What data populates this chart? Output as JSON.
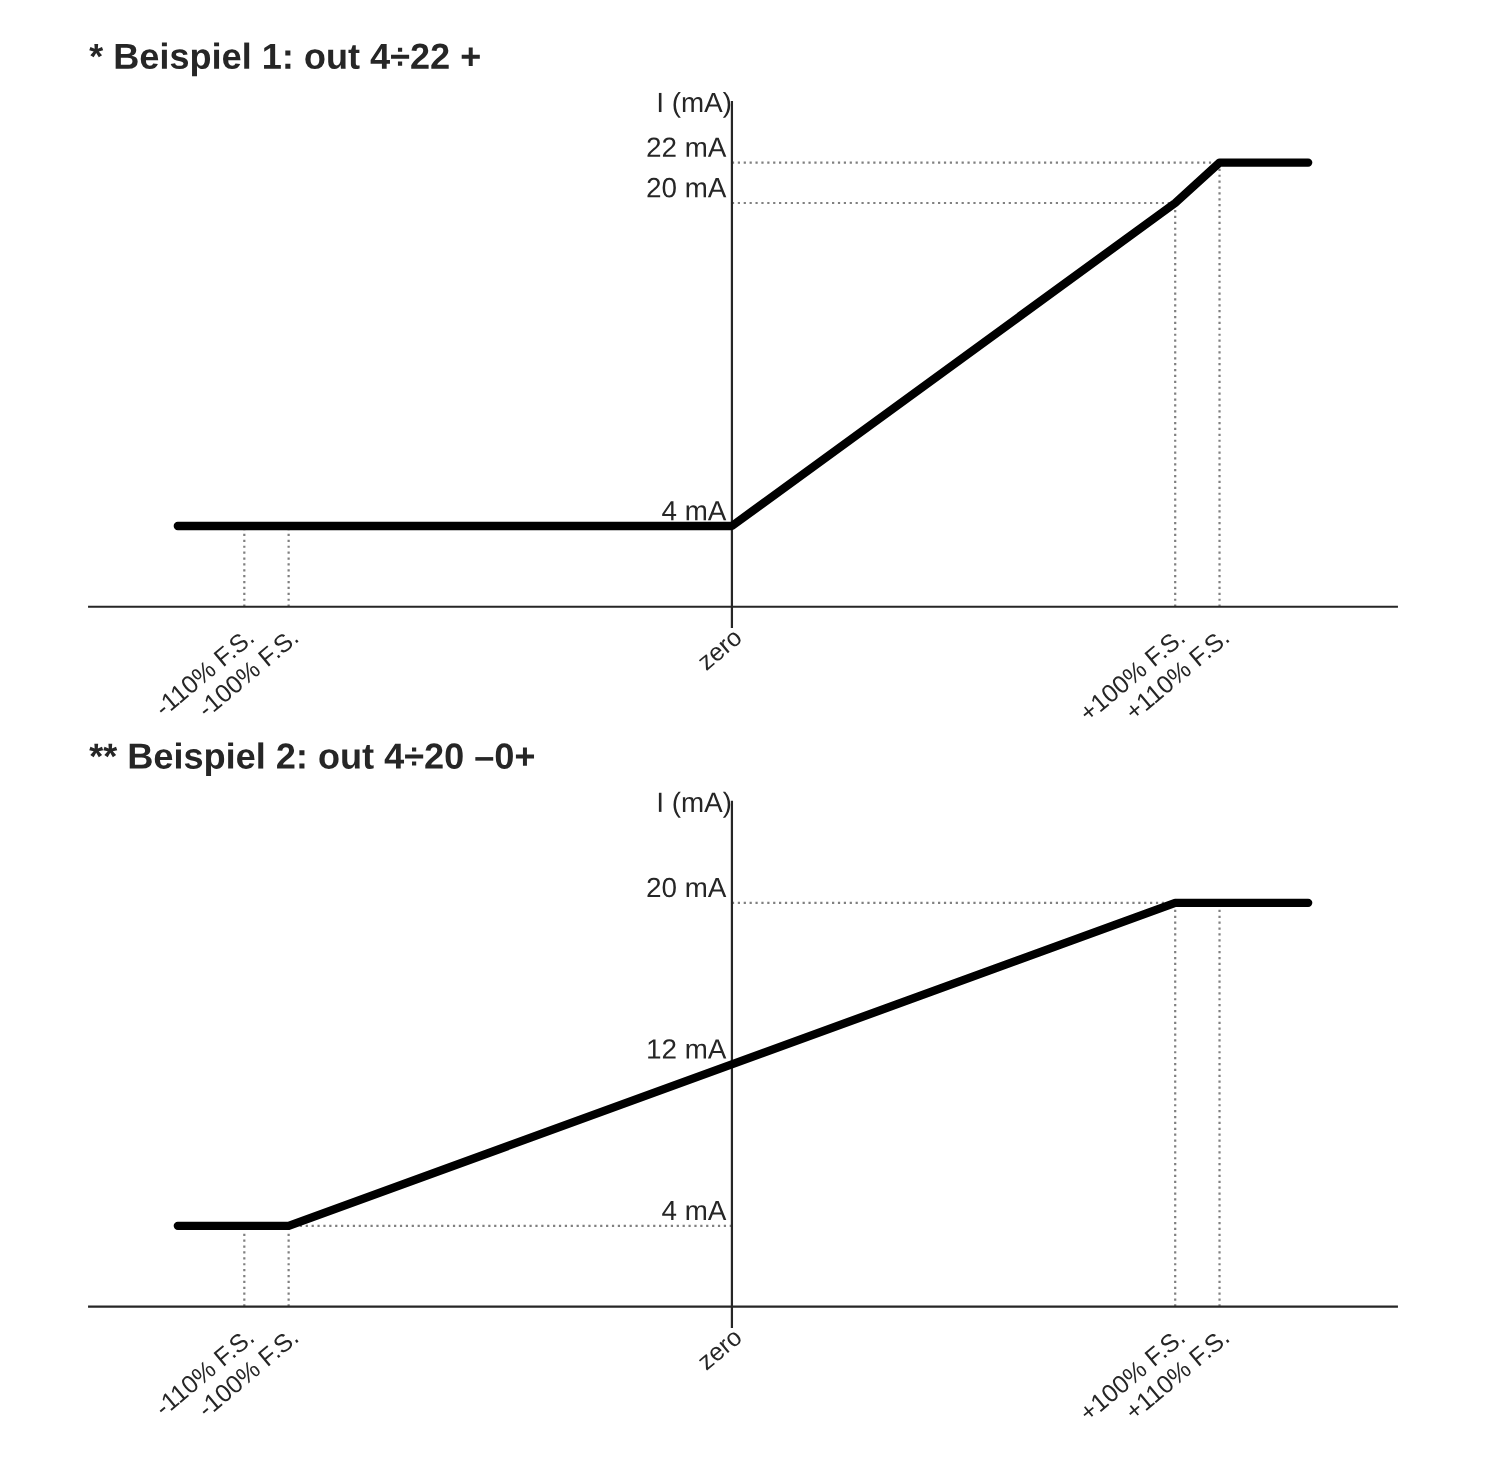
{
  "chart_data": [
    {
      "type": "line",
      "title": "* Beispiel 1: out 4÷22 +",
      "ylabel": "I (mA)",
      "x": [
        -125,
        0,
        100,
        110,
        130
      ],
      "series": [
        {
          "color": "#000000",
          "values": [
            4,
            4,
            20,
            22,
            22
          ]
        }
      ],
      "xlim": [
        -145,
        150
      ],
      "ylim": [
        -1,
        25
      ],
      "xticks": [
        {
          "value": -110,
          "label": "-110% F.S."
        },
        {
          "value": -100,
          "label": "-100% F.S."
        },
        {
          "value": 0,
          "label": "zero"
        },
        {
          "value": 100,
          "label": "+100% F.S."
        },
        {
          "value": 110,
          "label": "+110% F.S."
        }
      ],
      "yticks": [
        {
          "value": 4,
          "label": "4 mA"
        },
        {
          "value": 20,
          "label": "20 mA"
        },
        {
          "value": 22,
          "label": "22 mA"
        }
      ],
      "ref_lines": [
        {
          "axis": "x",
          "value": -110,
          "color": "#808080",
          "line_style": "dotted"
        },
        {
          "axis": "x",
          "value": -100,
          "color": "#808080",
          "line_style": "dotted"
        },
        {
          "axis": "x",
          "value": 100,
          "color": "#808080",
          "line_style": "dotted"
        },
        {
          "axis": "x",
          "value": 110,
          "color": "#808080",
          "line_style": "dotted"
        },
        {
          "axis": "y",
          "value": 20,
          "color": "#808080",
          "line_style": "dotted"
        },
        {
          "axis": "y",
          "value": 22,
          "color": "#808080",
          "line_style": "dotted"
        }
      ],
      "grid": false,
      "marker": "none",
      "line_style": "solid",
      "legend": false
    },
    {
      "type": "line",
      "title": "** Beispiel 2: out 4÷20 –0+",
      "ylabel": "I (mA)",
      "x": [
        -125,
        -100,
        100,
        130
      ],
      "series": [
        {
          "color": "#000000",
          "values": [
            4,
            4,
            20,
            20
          ]
        }
      ],
      "xlim": [
        -145,
        150
      ],
      "ylim": [
        -1,
        25
      ],
      "xticks": [
        {
          "value": -110,
          "label": "-110% F.S."
        },
        {
          "value": -100,
          "label": "-100% F.S."
        },
        {
          "value": 0,
          "label": "zero"
        },
        {
          "value": 100,
          "label": "+100% F.S."
        },
        {
          "value": 110,
          "label": "+110% F.S."
        }
      ],
      "yticks": [
        {
          "value": 4,
          "label": "4 mA"
        },
        {
          "value": 12,
          "label": "12 mA"
        },
        {
          "value": 20,
          "label": "20 mA"
        }
      ],
      "ref_lines": [
        {
          "axis": "x",
          "value": -110,
          "color": "#808080",
          "line_style": "dotted"
        },
        {
          "axis": "x",
          "value": -100,
          "color": "#808080",
          "line_style": "dotted"
        },
        {
          "axis": "x",
          "value": 100,
          "color": "#808080",
          "line_style": "dotted"
        },
        {
          "axis": "x",
          "value": 110,
          "color": "#808080",
          "line_style": "dotted"
        },
        {
          "axis": "y",
          "value": 4,
          "color": "#808080",
          "line_style": "dotted"
        },
        {
          "axis": "y",
          "value": 20,
          "color": "#808080",
          "line_style": "dotted"
        }
      ],
      "grid": false,
      "marker": "none",
      "line_style": "solid",
      "legend": false
    }
  ]
}
